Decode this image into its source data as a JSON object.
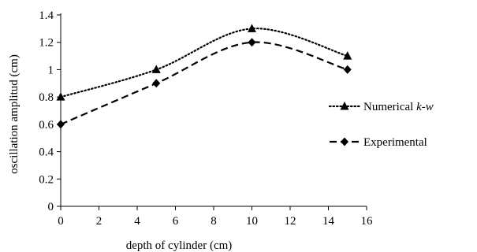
{
  "chart_data": {
    "type": "line",
    "title": "",
    "xlabel": "depth of cylinder (cm)",
    "ylabel": "oscillation amplitud (cm)",
    "xlim": [
      0,
      16
    ],
    "ylim": [
      0,
      1.4
    ],
    "xticks": [
      0,
      2,
      4,
      6,
      8,
      10,
      12,
      14,
      16
    ],
    "xtick_labels": [
      "0",
      "2",
      "4",
      "6",
      "8",
      "10",
      "12",
      "14",
      "16"
    ],
    "yticks": [
      0,
      0.2,
      0.4,
      0.6,
      0.8,
      1.0,
      1.2,
      1.4
    ],
    "ytick_labels": [
      "0",
      "0.2",
      "0.4",
      "0.6",
      "0.8",
      "1",
      "1.2",
      "1.4"
    ],
    "grid": false,
    "smooth": true,
    "legend_position": "right",
    "series": [
      {
        "name_plain": "Numerical ",
        "name_italic": "k-w",
        "x": [
          0,
          5,
          10,
          15
        ],
        "y": [
          0.8,
          1.0,
          1.3,
          1.1
        ],
        "line_style": "dotted",
        "marker": "triangle",
        "color": "#000000"
      },
      {
        "name": "Experimental",
        "x": [
          0,
          5,
          10,
          15
        ],
        "y": [
          0.6,
          0.9,
          1.2,
          1.0
        ],
        "line_style": "dashed",
        "marker": "diamond",
        "color": "#000000"
      }
    ]
  }
}
